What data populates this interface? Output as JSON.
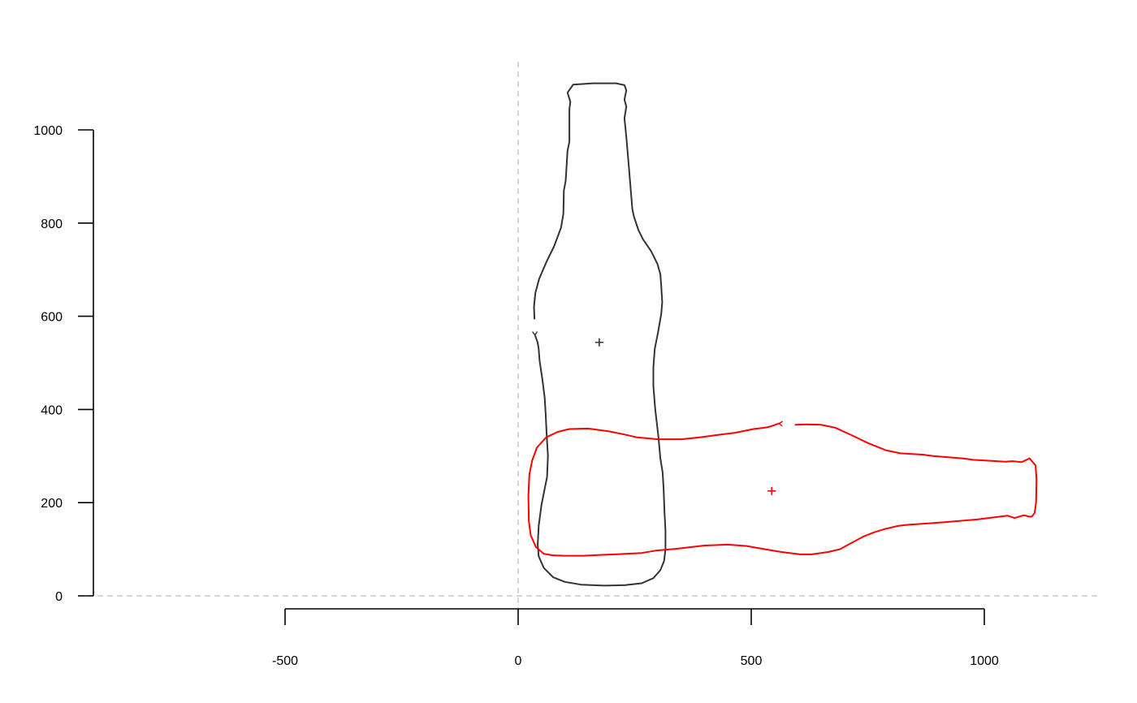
{
  "chart_data": {
    "type": "line",
    "title": "",
    "xlabel": "",
    "ylabel": "",
    "xlim": [
      -500,
      1250
    ],
    "ylim": [
      0,
      1100
    ],
    "x_ticks": [
      {
        "value": -500,
        "label": "-500"
      },
      {
        "value": 0,
        "label": "0"
      },
      {
        "value": 500,
        "label": "500"
      },
      {
        "value": 1000,
        "label": "1000"
      }
    ],
    "y_ticks": [
      {
        "value": 0,
        "label": "0"
      },
      {
        "value": 200,
        "label": "200"
      },
      {
        "value": 400,
        "label": "400"
      },
      {
        "value": 600,
        "label": "600"
      },
      {
        "value": 800,
        "label": "800"
      },
      {
        "value": 1000,
        "label": "1000"
      }
    ],
    "reference_lines": {
      "x": 0,
      "y": 0,
      "style": "dashed",
      "color": "#c8c8c8"
    },
    "grid": false,
    "legend": "none",
    "series": [
      {
        "color": "#333333",
        "centroid": [
          174,
          544
        ],
        "points": [
          [
            35,
            595
          ],
          [
            34,
            620
          ],
          [
            37,
            650
          ],
          [
            45,
            680
          ],
          [
            60,
            715
          ],
          [
            77,
            750
          ],
          [
            92,
            790
          ],
          [
            97,
            820
          ],
          [
            98,
            870
          ],
          [
            102,
            890
          ],
          [
            106,
            955
          ],
          [
            110,
            975
          ],
          [
            110,
            1045
          ],
          [
            112,
            1060
          ],
          [
            106,
            1080
          ],
          [
            118,
            1097
          ],
          [
            160,
            1100
          ],
          [
            210,
            1100
          ],
          [
            228,
            1096
          ],
          [
            232,
            1085
          ],
          [
            228,
            1065
          ],
          [
            232,
            1050
          ],
          [
            228,
            1025
          ],
          [
            232,
            985
          ],
          [
            238,
            915
          ],
          [
            245,
            830
          ],
          [
            248,
            815
          ],
          [
            258,
            785
          ],
          [
            268,
            765
          ],
          [
            285,
            740
          ],
          [
            299,
            712
          ],
          [
            305,
            690
          ],
          [
            307,
            665
          ],
          [
            309,
            630
          ],
          [
            307,
            605
          ],
          [
            300,
            565
          ],
          [
            293,
            530
          ],
          [
            290,
            490
          ],
          [
            290,
            450
          ],
          [
            294,
            400
          ],
          [
            301,
            340
          ],
          [
            305,
            295
          ],
          [
            310,
            265
          ],
          [
            312,
            230
          ],
          [
            314,
            180
          ],
          [
            316,
            140
          ],
          [
            316,
            100
          ],
          [
            313,
            75
          ],
          [
            305,
            55
          ],
          [
            290,
            38
          ],
          [
            265,
            27
          ],
          [
            230,
            23
          ],
          [
            185,
            22
          ],
          [
            135,
            24
          ],
          [
            100,
            30
          ],
          [
            75,
            40
          ],
          [
            55,
            60
          ],
          [
            44,
            85
          ],
          [
            42,
            110
          ],
          [
            44,
            150
          ],
          [
            50,
            195
          ],
          [
            56,
            225
          ],
          [
            62,
            255
          ],
          [
            64,
            300
          ],
          [
            61,
            350
          ],
          [
            59,
            390
          ],
          [
            57,
            425
          ],
          [
            52,
            465
          ],
          [
            46,
            505
          ],
          [
            44,
            530
          ],
          [
            42,
            543
          ],
          [
            36,
            560
          ]
        ],
        "start_point": [
          36,
          560
        ]
      },
      {
        "color": "#ff0000",
        "centroid": [
          544,
          225
        ],
        "points": [
          [
            595,
            367
          ],
          [
            620,
            368
          ],
          [
            650,
            367
          ],
          [
            680,
            361
          ],
          [
            715,
            345
          ],
          [
            750,
            328
          ],
          [
            790,
            312
          ],
          [
            820,
            306
          ],
          [
            870,
            303
          ],
          [
            890,
            300
          ],
          [
            955,
            295
          ],
          [
            975,
            292
          ],
          [
            1045,
            288
          ],
          [
            1060,
            289
          ],
          [
            1080,
            287
          ],
          [
            1097,
            295
          ],
          [
            1110,
            280
          ],
          [
            1112,
            250
          ],
          [
            1111,
            200
          ],
          [
            1108,
            178
          ],
          [
            1102,
            170
          ],
          [
            1096,
            170
          ],
          [
            1085,
            173
          ],
          [
            1065,
            167
          ],
          [
            1050,
            172
          ],
          [
            1025,
            169
          ],
          [
            985,
            164
          ],
          [
            915,
            158
          ],
          [
            830,
            152
          ],
          [
            815,
            150
          ],
          [
            785,
            143
          ],
          [
            765,
            137
          ],
          [
            740,
            127
          ],
          [
            712,
            112
          ],
          [
            690,
            100
          ],
          [
            665,
            94
          ],
          [
            630,
            89
          ],
          [
            605,
            89
          ],
          [
            565,
            94
          ],
          [
            530,
            100
          ],
          [
            490,
            107
          ],
          [
            450,
            110
          ],
          [
            400,
            108
          ],
          [
            340,
            101
          ],
          [
            295,
            97
          ],
          [
            265,
            92
          ],
          [
            230,
            90
          ],
          [
            180,
            88
          ],
          [
            140,
            86
          ],
          [
            100,
            86
          ],
          [
            75,
            87
          ],
          [
            55,
            90
          ],
          [
            38,
            105
          ],
          [
            27,
            130
          ],
          [
            23,
            160
          ],
          [
            22,
            215
          ],
          [
            24,
            260
          ],
          [
            30,
            290
          ],
          [
            40,
            318
          ],
          [
            60,
            340
          ],
          [
            85,
            352
          ],
          [
            110,
            358
          ],
          [
            150,
            359
          ],
          [
            195,
            353
          ],
          [
            225,
            347
          ],
          [
            255,
            340
          ],
          [
            300,
            336
          ],
          [
            350,
            336
          ],
          [
            390,
            340
          ],
          [
            425,
            345
          ],
          [
            465,
            350
          ],
          [
            505,
            358
          ],
          [
            530,
            361
          ],
          [
            543,
            364
          ],
          [
            560,
            370
          ]
        ],
        "start_point": [
          560,
          370
        ]
      }
    ]
  }
}
